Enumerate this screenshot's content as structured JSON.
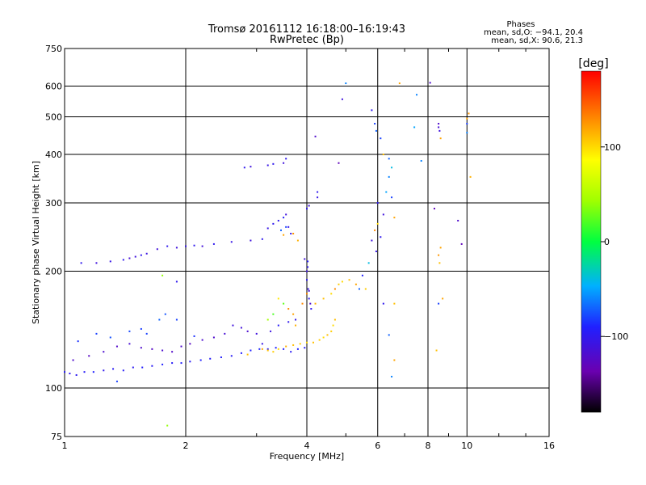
{
  "chart_data": {
    "type": "scatter",
    "title": "Tromsø 20161112 16:18:00–16:19:43",
    "subtitle": "RwPretec (Bp)",
    "xlabel": "Frequency [MHz]",
    "ylabel": "Stationary phase Virtual Height [km]",
    "xscale": "log",
    "yscale": "log",
    "xlim": [
      1,
      16
    ],
    "ylim": [
      75,
      750
    ],
    "x_ticks": [
      1,
      2,
      4,
      6,
      8,
      10,
      16
    ],
    "y_ticks": [
      75,
      100,
      200,
      300,
      400,
      500,
      600,
      750
    ],
    "x_tick_labels": [
      "1",
      "2",
      "4",
      "6",
      "8",
      "10",
      "16"
    ],
    "y_tick_labels": [
      "75",
      "100",
      "200",
      "300",
      "400",
      "500",
      "600",
      "750"
    ],
    "grid": true,
    "phase_box": {
      "title": "Phases",
      "o_line": "mean, sd,O: −94.1, 20.4",
      "x_line": "mean, sd,X:  90.6, 21.3"
    },
    "colorbar": {
      "label": "[deg]",
      "range": [
        -180,
        180
      ],
      "ticks": [
        100,
        0,
        -100
      ],
      "tick_labels": [
        "100",
        "0",
        "−100"
      ]
    },
    "series": [
      {
        "points": [
          [
            1.0,
            110,
            -95
          ],
          [
            1.03,
            109,
            -100
          ],
          [
            1.07,
            108,
            -98
          ],
          [
            1.12,
            110,
            -95
          ],
          [
            1.18,
            110,
            -90
          ],
          [
            1.25,
            111,
            -100
          ],
          [
            1.32,
            112,
            -96
          ],
          [
            1.4,
            111,
            -94
          ],
          [
            1.48,
            113,
            -98
          ],
          [
            1.56,
            113,
            -92
          ],
          [
            1.65,
            114,
            -96
          ],
          [
            1.75,
            115,
            -90
          ],
          [
            1.85,
            116,
            -95
          ],
          [
            1.95,
            116,
            -92
          ],
          [
            2.05,
            117,
            -96
          ],
          [
            2.18,
            118,
            -90
          ],
          [
            2.3,
            119,
            -94
          ],
          [
            2.45,
            120,
            -92
          ],
          [
            2.6,
            121,
            -96
          ],
          [
            2.75,
            123,
            -92
          ],
          [
            2.9,
            125,
            -90
          ],
          [
            3.05,
            126,
            -88
          ],
          [
            3.2,
            126,
            -95
          ],
          [
            3.35,
            127,
            -90
          ],
          [
            3.5,
            126,
            -92
          ],
          [
            3.65,
            124,
            -96
          ],
          [
            3.8,
            126,
            -90
          ],
          [
            3.95,
            127,
            -94
          ],
          [
            1.05,
            118,
            -120
          ],
          [
            1.15,
            121,
            -125
          ],
          [
            1.25,
            124,
            -118
          ],
          [
            1.35,
            128,
            -122
          ],
          [
            1.45,
            130,
            -115
          ],
          [
            1.55,
            127,
            -120
          ],
          [
            1.65,
            126,
            -124
          ],
          [
            1.75,
            125,
            -118
          ],
          [
            1.85,
            124,
            -122
          ],
          [
            1.95,
            128,
            -120
          ],
          [
            2.05,
            130,
            -125
          ],
          [
            2.2,
            133,
            -118
          ],
          [
            2.35,
            135,
            -120
          ],
          [
            2.5,
            138,
            -115
          ],
          [
            2.62,
            145,
            -110
          ],
          [
            2.75,
            143,
            -112
          ],
          [
            2.85,
            140,
            -118
          ],
          [
            3.0,
            138,
            -110
          ],
          [
            3.1,
            130,
            -105
          ],
          [
            3.25,
            140,
            -108
          ],
          [
            3.4,
            145,
            -95
          ],
          [
            3.6,
            148,
            -100
          ],
          [
            3.75,
            150,
            -105
          ],
          [
            1.08,
            132,
            -85
          ],
          [
            1.2,
            138,
            -80
          ],
          [
            1.3,
            135,
            -75
          ],
          [
            1.45,
            140,
            -78
          ],
          [
            1.55,
            142,
            -82
          ],
          [
            1.6,
            138,
            -80
          ],
          [
            1.72,
            150,
            -70
          ],
          [
            1.78,
            155,
            -75
          ],
          [
            1.9,
            150,
            -80
          ],
          [
            2.1,
            136,
            -85
          ],
          [
            3.1,
            126,
            120
          ],
          [
            3.2,
            125,
            110
          ],
          [
            3.3,
            124,
            105
          ],
          [
            3.4,
            126,
            100
          ],
          [
            3.55,
            128,
            115
          ],
          [
            3.7,
            129,
            110
          ],
          [
            3.85,
            130,
            105
          ],
          [
            4.0,
            131,
            100
          ],
          [
            4.15,
            131,
            110
          ],
          [
            4.3,
            133,
            105
          ],
          [
            4.4,
            135,
            100
          ],
          [
            4.5,
            137,
            110
          ],
          [
            4.6,
            140,
            105
          ],
          [
            4.65,
            145,
            100
          ],
          [
            4.7,
            150,
            110
          ],
          [
            2.85,
            122,
            110
          ],
          [
            3.2,
            150,
            45
          ],
          [
            3.3,
            155,
            20
          ],
          [
            3.4,
            170,
            95
          ],
          [
            3.5,
            165,
            25
          ],
          [
            3.6,
            160,
            130
          ],
          [
            3.7,
            155,
            120
          ],
          [
            3.75,
            145,
            115
          ],
          [
            3.9,
            165,
            130
          ],
          [
            4.0,
            175,
            130
          ],
          [
            4.2,
            165,
            115
          ],
          [
            4.4,
            170,
            110
          ],
          [
            4.6,
            175,
            100
          ],
          [
            4.7,
            180,
            130
          ],
          [
            4.8,
            185,
            105
          ],
          [
            4.9,
            188,
            100
          ],
          [
            5.1,
            190,
            110
          ],
          [
            5.3,
            185,
            120
          ],
          [
            5.6,
            180,
            105
          ],
          [
            4.0,
            190,
            -100
          ],
          [
            4.0,
            200,
            -110
          ],
          [
            4.02,
            205,
            -100
          ],
          [
            4.02,
            212,
            -95
          ],
          [
            4.03,
            180,
            -105
          ],
          [
            4.05,
            178,
            -115
          ],
          [
            4.05,
            170,
            -100
          ],
          [
            4.08,
            165,
            -120
          ],
          [
            4.1,
            160,
            -100
          ],
          [
            3.95,
            215,
            -110
          ],
          [
            1.1,
            210,
            -100
          ],
          [
            1.2,
            210,
            -110
          ],
          [
            1.3,
            212,
            -105
          ],
          [
            1.4,
            214,
            -100
          ],
          [
            1.45,
            216,
            -115
          ],
          [
            1.5,
            218,
            -110
          ],
          [
            1.55,
            220,
            -100
          ],
          [
            1.6,
            222,
            -108
          ],
          [
            1.7,
            228,
            -112
          ],
          [
            1.8,
            232,
            -100
          ],
          [
            1.9,
            230,
            -110
          ],
          [
            2.0,
            232,
            -105
          ],
          [
            2.1,
            233,
            -100
          ],
          [
            2.2,
            232,
            -112
          ],
          [
            2.35,
            235,
            -100
          ],
          [
            2.6,
            238,
            -105
          ],
          [
            2.9,
            240,
            -110
          ],
          [
            3.1,
            242,
            -100
          ],
          [
            3.2,
            258,
            -105
          ],
          [
            3.3,
            265,
            -100
          ],
          [
            3.4,
            270,
            -100
          ],
          [
            3.5,
            275,
            -95
          ],
          [
            3.55,
            280,
            -110
          ],
          [
            3.6,
            260,
            -105
          ],
          [
            3.65,
            250,
            -100
          ],
          [
            3.45,
            255,
            -70
          ],
          [
            3.55,
            260,
            -80
          ],
          [
            3.5,
            248,
            120
          ],
          [
            3.7,
            250,
            125
          ],
          [
            3.8,
            240,
            115
          ],
          [
            4.0,
            290,
            -100
          ],
          [
            4.05,
            295,
            -110
          ],
          [
            4.25,
            310,
            -105
          ],
          [
            4.25,
            320,
            -100
          ],
          [
            2.8,
            370,
            -100
          ],
          [
            2.9,
            372,
            -110
          ],
          [
            3.2,
            375,
            -105
          ],
          [
            3.3,
            378,
            -100
          ],
          [
            3.5,
            380,
            -110
          ],
          [
            3.55,
            390,
            -100
          ],
          [
            4.2,
            445,
            -120
          ],
          [
            4.8,
            380,
            -130
          ],
          [
            4.9,
            555,
            -110
          ],
          [
            5.8,
            520,
            -100
          ],
          [
            5.9,
            480,
            -80
          ],
          [
            5.95,
            460,
            -70
          ],
          [
            6.1,
            440,
            -80
          ],
          [
            6.2,
            400,
            110
          ],
          [
            6.4,
            390,
            -70
          ],
          [
            6.5,
            370,
            -40
          ],
          [
            6.4,
            350,
            -60
          ],
          [
            6.3,
            320,
            -50
          ],
          [
            6.5,
            310,
            -80
          ],
          [
            6.0,
            300,
            -100
          ],
          [
            6.2,
            280,
            -110
          ],
          [
            6.6,
            275,
            120
          ],
          [
            6.0,
            265,
            100
          ],
          [
            5.9,
            255,
            130
          ],
          [
            6.1,
            245,
            -100
          ],
          [
            5.8,
            240,
            -110
          ],
          [
            5.95,
            225,
            -105
          ],
          [
            5.7,
            210,
            -40
          ],
          [
            5.5,
            195,
            -90
          ],
          [
            5.4,
            180,
            -70
          ],
          [
            6.2,
            165,
            -100
          ],
          [
            6.6,
            165,
            110
          ],
          [
            6.6,
            118,
            120
          ],
          [
            6.4,
            137,
            -70
          ],
          [
            6.5,
            107,
            -60
          ],
          [
            5.0,
            610,
            -60
          ],
          [
            6.8,
            610,
            120
          ],
          [
            7.5,
            570,
            -60
          ],
          [
            7.4,
            470,
            -50
          ],
          [
            7.7,
            385,
            -60
          ],
          [
            8.1,
            612,
            -120
          ],
          [
            8.5,
            480,
            -120
          ],
          [
            8.5,
            470,
            -115
          ],
          [
            8.55,
            460,
            -110
          ],
          [
            8.6,
            440,
            120
          ],
          [
            8.3,
            290,
            -130
          ],
          [
            8.6,
            230,
            120
          ],
          [
            8.5,
            220,
            125
          ],
          [
            8.55,
            210,
            110
          ],
          [
            8.5,
            165,
            -80
          ],
          [
            8.7,
            170,
            120
          ],
          [
            8.4,
            125,
            110
          ],
          [
            9.5,
            270,
            -120
          ],
          [
            9.7,
            235,
            -130
          ],
          [
            10.0,
            495,
            120
          ],
          [
            10.1,
            510,
            125
          ],
          [
            10.0,
            480,
            -80
          ],
          [
            10.0,
            455,
            -60
          ],
          [
            10.2,
            350,
            115
          ],
          [
            1.8,
            80,
            40
          ],
          [
            1.75,
            195,
            40
          ],
          [
            1.9,
            188,
            -100
          ],
          [
            1.35,
            104,
            -80
          ]
        ]
      }
    ]
  }
}
